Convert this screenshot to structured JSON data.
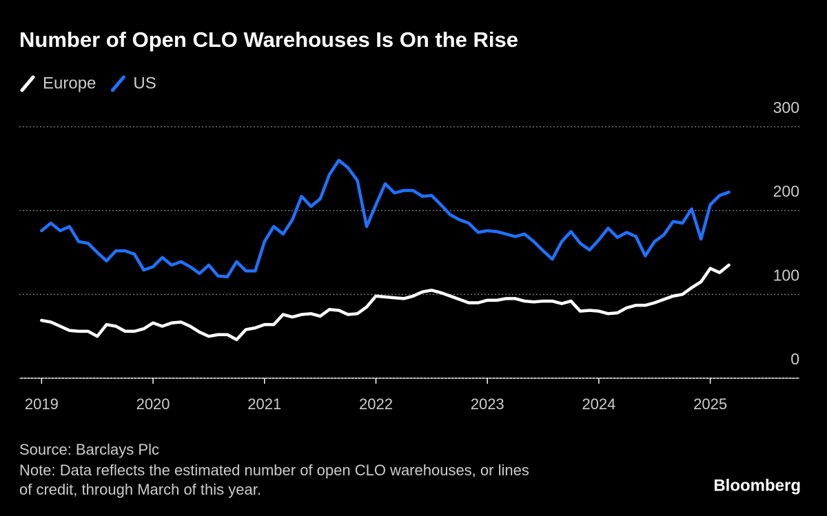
{
  "chart_data": {
    "type": "line",
    "title": "Number of Open CLO Warehouses Is On the Rise",
    "source": "Source: Barclays Plc",
    "note": [
      "Note: Data reflects the estimated number of open CLO warehouses, or lines",
      "of credit, through March of this year."
    ],
    "brand": "Bloomberg",
    "x": [
      2019,
      2019.083,
      2019.167,
      2019.25,
      2019.333,
      2019.417,
      2019.5,
      2019.583,
      2019.667,
      2019.75,
      2019.833,
      2019.917,
      2020,
      2020.083,
      2020.167,
      2020.25,
      2020.333,
      2020.417,
      2020.5,
      2020.583,
      2020.667,
      2020.75,
      2020.833,
      2020.917,
      2021,
      2021.083,
      2021.167,
      2021.25,
      2021.333,
      2021.417,
      2021.5,
      2021.583,
      2021.667,
      2021.75,
      2021.833,
      2021.917,
      2022,
      2022.083,
      2022.167,
      2022.25,
      2022.333,
      2022.417,
      2022.5,
      2022.583,
      2022.667,
      2022.75,
      2022.833,
      2022.917,
      2023,
      2023.083,
      2023.167,
      2023.25,
      2023.333,
      2023.417,
      2023.5,
      2023.583,
      2023.667,
      2023.75,
      2023.833,
      2023.917,
      2024,
      2024.083,
      2024.167,
      2024.25,
      2024.333,
      2024.417,
      2024.5,
      2024.583,
      2024.667,
      2024.75,
      2024.833,
      2024.917,
      2025,
      2025.083,
      2025.167
    ],
    "series": [
      {
        "name": "Europe",
        "color": "#ffffff",
        "values": [
          69,
          67,
          62,
          57,
          56,
          56,
          50,
          64,
          62,
          56,
          56,
          59,
          66,
          62,
          66,
          67,
          62,
          55,
          50,
          52,
          52,
          46,
          58,
          60,
          64,
          64,
          76,
          73,
          76,
          77,
          74,
          82,
          81,
          76,
          77,
          85,
          98,
          97,
          96,
          95,
          98,
          103,
          105,
          102,
          98,
          94,
          90,
          90,
          93,
          93,
          95,
          95,
          92,
          91,
          92,
          92,
          89,
          92,
          80,
          81,
          80,
          77,
          78,
          84,
          87,
          87,
          90,
          94,
          98,
          100,
          108,
          115,
          131,
          126,
          135
        ]
      },
      {
        "name": "US",
        "color": "#1f72ff",
        "values": [
          176,
          185,
          176,
          181,
          163,
          161,
          150,
          140,
          152,
          152,
          148,
          129,
          133,
          144,
          135,
          139,
          133,
          125,
          135,
          122,
          121,
          139,
          128,
          128,
          163,
          181,
          172,
          189,
          217,
          205,
          214,
          243,
          260,
          251,
          236,
          181,
          207,
          232,
          221,
          224,
          224,
          217,
          218,
          207,
          195,
          189,
          185,
          174,
          176,
          175,
          172,
          169,
          172,
          163,
          152,
          142,
          163,
          175,
          161,
          153,
          165,
          179,
          168,
          174,
          169,
          146,
          163,
          171,
          187,
          185,
          202,
          166,
          207,
          218,
          222
        ]
      }
    ],
    "xlim": [
      2018.8,
      2025.8
    ],
    "xticks": [
      2019,
      2020,
      2021,
      2022,
      2023,
      2024,
      2025
    ],
    "ylim": [
      0,
      300
    ],
    "yticks": [
      0,
      100,
      200,
      300
    ],
    "grid": true
  }
}
